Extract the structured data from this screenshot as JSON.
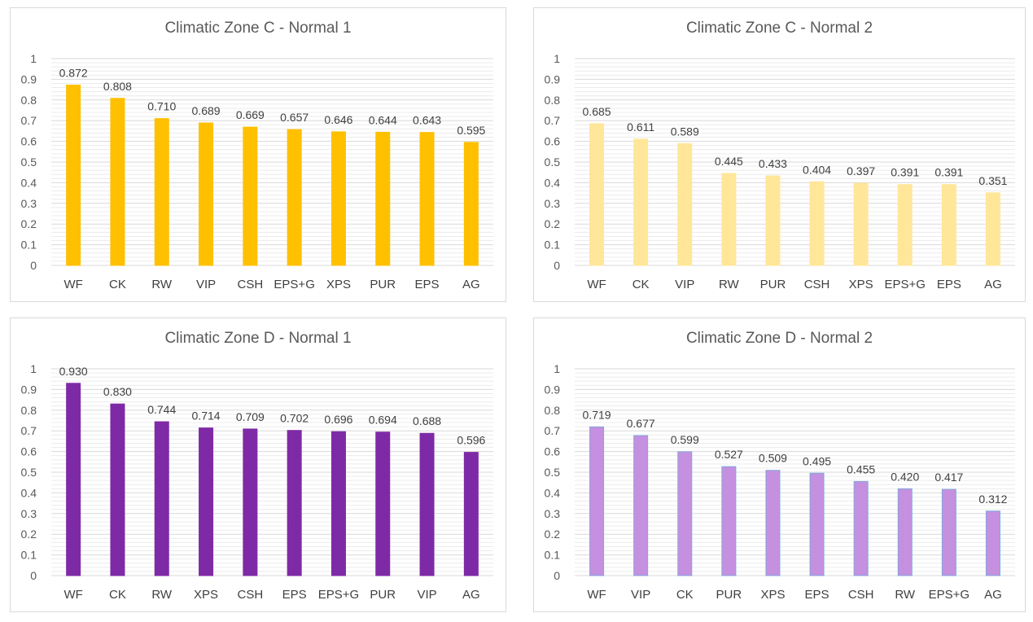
{
  "chart_data": [
    {
      "type": "bar",
      "title": "Climatic Zone C - Normal 1",
      "categories": [
        "WF",
        "CK",
        "RW",
        "VIP",
        "CSH",
        "EPS+G",
        "XPS",
        "PUR",
        "EPS",
        "AG"
      ],
      "values": [
        0.872,
        0.808,
        0.71,
        0.689,
        0.669,
        0.657,
        0.646,
        0.644,
        0.643,
        0.595
      ],
      "data_labels": [
        "0.872",
        "0.808",
        "0.710",
        "0.689",
        "0.669",
        "0.657",
        "0.646",
        "0.644",
        "0.643",
        "0.595"
      ],
      "y_ticks": [
        "0",
        "0.1",
        "0.2",
        "0.3",
        "0.4",
        "0.5",
        "0.6",
        "0.7",
        "0.8",
        "0.9",
        "1"
      ],
      "ylim": [
        0,
        1
      ],
      "xlabel": "",
      "ylabel": "",
      "grid": true,
      "bar_color": "#FFC000",
      "bar_edge_color": "#FFC000"
    },
    {
      "type": "bar",
      "title": "Climatic Zone C - Normal 2",
      "categories": [
        "WF",
        "CK",
        "VIP",
        "RW",
        "PUR",
        "CSH",
        "XPS",
        "EPS+G",
        "EPS",
        "AG"
      ],
      "values": [
        0.685,
        0.611,
        0.589,
        0.445,
        0.433,
        0.404,
        0.397,
        0.391,
        0.391,
        0.351
      ],
      "data_labels": [
        "0.685",
        "0.611",
        "0.589",
        "0.445",
        "0.433",
        "0.404",
        "0.397",
        "0.391",
        "0.391",
        "0.351"
      ],
      "y_ticks": [
        "0",
        "0.1",
        "0.2",
        "0.3",
        "0.4",
        "0.5",
        "0.6",
        "0.7",
        "0.8",
        "0.9",
        "1"
      ],
      "ylim": [
        0,
        1
      ],
      "xlabel": "",
      "ylabel": "",
      "grid": true,
      "bar_color": "#FFE699",
      "bar_edge_color": "#FFE699"
    },
    {
      "type": "bar",
      "title": "Climatic Zone D - Normal 1",
      "categories": [
        "WF",
        "CK",
        "RW",
        "XPS",
        "CSH",
        "EPS",
        "EPS+G",
        "PUR",
        "VIP",
        "AG"
      ],
      "values": [
        0.93,
        0.83,
        0.744,
        0.714,
        0.709,
        0.702,
        0.696,
        0.694,
        0.688,
        0.596
      ],
      "data_labels": [
        "0.930",
        "0.830",
        "0.744",
        "0.714",
        "0.709",
        "0.702",
        "0.696",
        "0.694",
        "0.688",
        "0.596"
      ],
      "y_ticks": [
        "0",
        "0.1",
        "0.2",
        "0.3",
        "0.4",
        "0.5",
        "0.6",
        "0.7",
        "0.8",
        "0.9",
        "1"
      ],
      "ylim": [
        0,
        1
      ],
      "xlabel": "",
      "ylabel": "",
      "grid": true,
      "bar_color": "#7E2AA6",
      "bar_edge_color": "#7E2AA6"
    },
    {
      "type": "bar",
      "title": "Climatic Zone D - Normal 2",
      "categories": [
        "WF",
        "VIP",
        "CK",
        "PUR",
        "XPS",
        "EPS",
        "CSH",
        "RW",
        "EPS+G",
        "AG"
      ],
      "values": [
        0.719,
        0.677,
        0.599,
        0.527,
        0.509,
        0.495,
        0.455,
        0.42,
        0.417,
        0.312
      ],
      "data_labels": [
        "0.719",
        "0.677",
        "0.599",
        "0.527",
        "0.509",
        "0.495",
        "0.455",
        "0.420",
        "0.417",
        "0.312"
      ],
      "y_ticks": [
        "0",
        "0.1",
        "0.2",
        "0.3",
        "0.4",
        "0.5",
        "0.6",
        "0.7",
        "0.8",
        "0.9",
        "1"
      ],
      "ylim": [
        0,
        1
      ],
      "xlabel": "",
      "ylabel": "",
      "grid": true,
      "bar_color": "#C590E0",
      "bar_edge_color": "#7FA8DC"
    }
  ]
}
